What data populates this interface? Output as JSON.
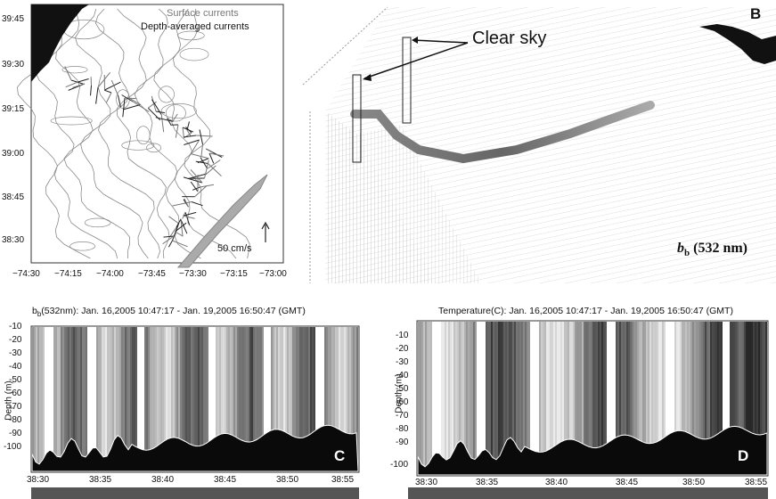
{
  "panel_a": {
    "label": "A",
    "legend": [
      "Surface currents",
      "Depth-averaged currents"
    ],
    "scale_label": "50 cm/s",
    "y_ticks": [
      "39:45",
      "39:30",
      "39:15",
      "39:00",
      "38:45",
      "38:30"
    ],
    "x_ticks": [
      "−74:30",
      "−74:15",
      "−74:00",
      "−73:45",
      "−73:30",
      "−73:15",
      "−73:00"
    ]
  },
  "panel_b": {
    "label": "B",
    "annotation": "Clear sky",
    "quantity": "b",
    "subscript": "b",
    "wavelength": "(532 nm)"
  },
  "panel_c": {
    "label": "C",
    "title_pre": "b",
    "title_sub": "b",
    "title_post": "(532nm): Jan. 16,2005 10:47:17 - Jan. 19,2005 16:50:47 (GMT)",
    "ylabel": "Depth (m)",
    "y_ticks": [
      "-10",
      "-20",
      "-30",
      "-40",
      "-50",
      "-60",
      "-70",
      "-80",
      "-90",
      "-100"
    ],
    "x_ticks": [
      "38:30",
      "38:35",
      "38:40",
      "38:45",
      "38:50",
      "38:55"
    ]
  },
  "panel_d": {
    "label": "D",
    "title": "Temperature(C): Jan. 16,2005 10:47:17 - Jan. 19,2005 16:50:47 (GMT)",
    "ylabel": "Depth (m)",
    "y_ticks": [
      "-10",
      "-20",
      "-30",
      "-40",
      "-50",
      "-60",
      "-70",
      "-80",
      "-90",
      "-100"
    ],
    "x_ticks": [
      "38:30",
      "38:35",
      "38:40",
      "38:45",
      "38:50",
      "38:55"
    ]
  },
  "colors": {
    "seafloor": "#0a0a0a",
    "contour": "#8a8a8a",
    "vector": "#222222",
    "mesh": "#9a9a9a"
  }
}
